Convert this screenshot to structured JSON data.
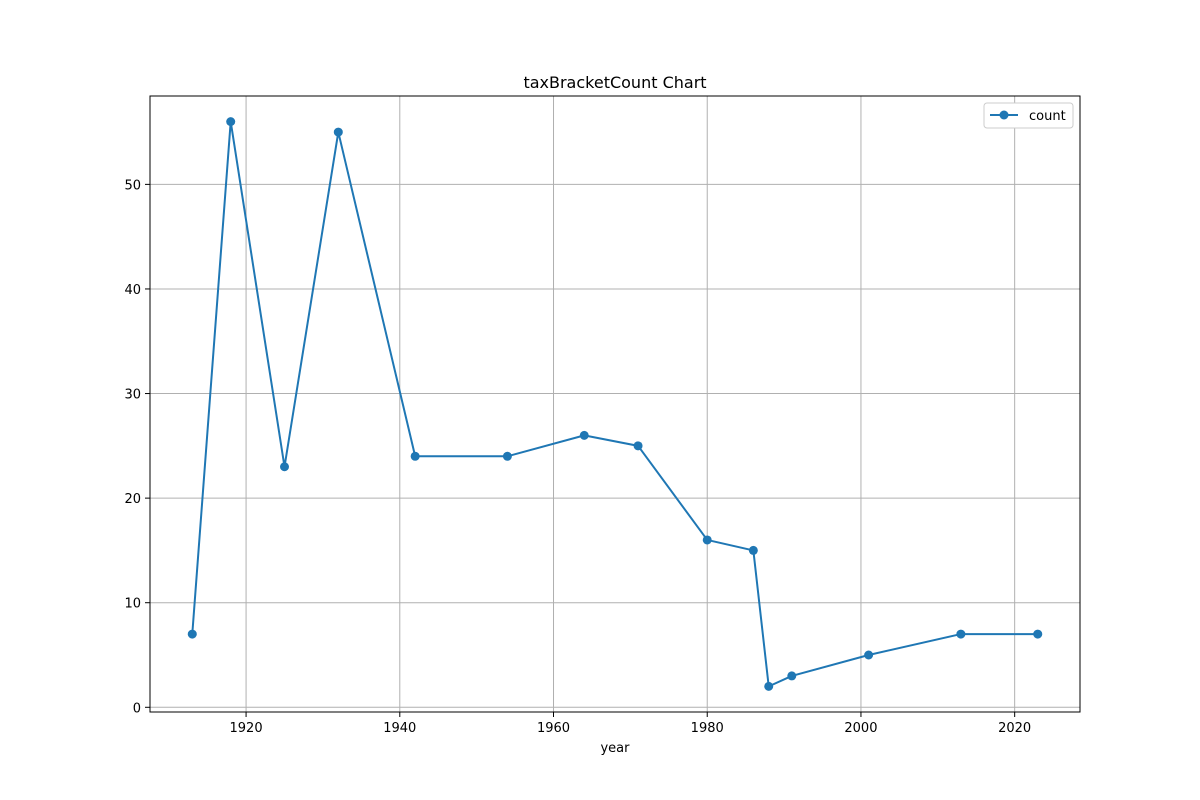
{
  "chart_data": {
    "type": "line",
    "title": "taxBracketCount Chart",
    "xlabel": "year",
    "ylabel": "",
    "xlim": [
      1907.5,
      2028.5
    ],
    "ylim": [
      -0.45,
      58.45
    ],
    "xticks": [
      1920,
      1940,
      1960,
      1980,
      2000,
      2020
    ],
    "yticks": [
      0,
      10,
      20,
      30,
      40,
      50
    ],
    "grid": true,
    "legend_position": "top-right",
    "series": [
      {
        "name": "count",
        "color": "#1f77b4",
        "marker": "circle",
        "x": [
          1913,
          1918,
          1925,
          1932,
          1942,
          1954,
          1964,
          1971,
          1980,
          1986,
          1988,
          1991,
          2001,
          2013,
          2023
        ],
        "y": [
          7,
          56,
          23,
          55,
          24,
          24,
          26,
          25,
          16,
          15,
          2,
          3,
          5,
          7,
          7
        ]
      }
    ]
  }
}
